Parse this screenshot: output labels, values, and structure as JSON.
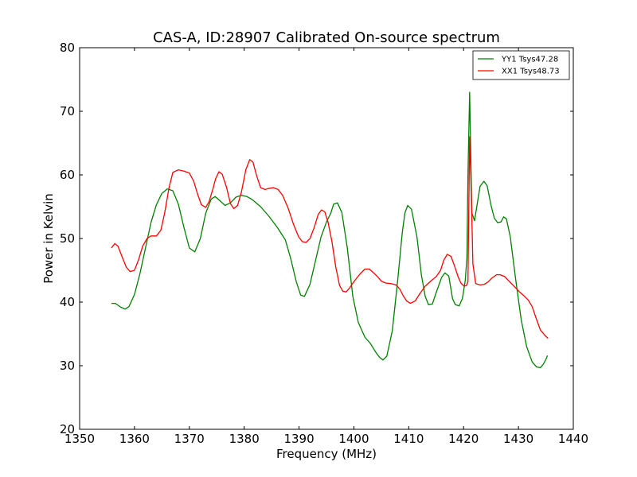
{
  "chart_data": {
    "type": "line",
    "title": "CAS-A, ID:28907 Calibrated On-source spectrum",
    "xlabel": "Frequency (MHz)",
    "ylabel": "Power in Kelvin",
    "xlim": [
      1350,
      1440
    ],
    "ylim": [
      20,
      80
    ],
    "xticks": [
      1350,
      1360,
      1370,
      1380,
      1390,
      1400,
      1410,
      1420,
      1430,
      1440
    ],
    "yticks": [
      20,
      30,
      40,
      50,
      60,
      70,
      80
    ],
    "grid": false,
    "legend_position": "top-right",
    "series": [
      {
        "name": "YY1 Tsys47.28",
        "color": "#008000",
        "x": [
          1355.8,
          1356.5,
          1357.5,
          1358.3,
          1359.0,
          1360.0,
          1361.0,
          1362.0,
          1363.0,
          1364.0,
          1365.0,
          1366.0,
          1367.0,
          1368.0,
          1369.0,
          1370.0,
          1371.0,
          1372.0,
          1373.0,
          1374.0,
          1374.7,
          1375.5,
          1376.5,
          1377.5,
          1378.5,
          1379.5,
          1380.5,
          1381.5,
          1383.0,
          1384.5,
          1386.0,
          1387.5,
          1388.5,
          1389.5,
          1390.3,
          1391.0,
          1392.0,
          1393.0,
          1394.0,
          1395.0,
          1395.8,
          1396.3,
          1397.0,
          1397.8,
          1398.8,
          1399.8,
          1400.8,
          1402.0,
          1403.0,
          1404.0,
          1404.7,
          1405.3,
          1406.0,
          1407.0,
          1408.0,
          1408.8,
          1409.3,
          1409.8,
          1410.5,
          1411.5,
          1412.3,
          1413.0,
          1413.6,
          1414.3,
          1415.0,
          1416.0,
          1416.6,
          1417.3,
          1418.0,
          1418.5,
          1419.2,
          1419.8,
          1420.3,
          1420.6,
          1420.8,
          1421.1,
          1421.5,
          1422.0,
          1422.5,
          1423.0,
          1423.7,
          1424.3,
          1425.0,
          1425.6,
          1426.2,
          1426.8,
          1427.3,
          1427.8,
          1428.5,
          1429.5,
          1430.5,
          1431.5,
          1432.5,
          1433.3,
          1434.0,
          1434.5,
          1435.0,
          1435.3
        ],
        "y": [
          39.8,
          39.8,
          39.2,
          38.9,
          39.3,
          41.2,
          44.5,
          48.5,
          52.5,
          55.3,
          57.1,
          57.8,
          57.5,
          55.4,
          51.8,
          48.5,
          47.9,
          50.0,
          54.0,
          56.2,
          56.6,
          56.0,
          55.2,
          55.6,
          56.5,
          56.8,
          56.6,
          56.1,
          55.0,
          53.5,
          51.8,
          49.8,
          46.8,
          43.2,
          41.1,
          40.9,
          42.8,
          46.5,
          50.2,
          52.6,
          54.0,
          55.4,
          55.6,
          54.1,
          48.5,
          40.9,
          36.8,
          34.5,
          33.5,
          32.1,
          31.3,
          30.9,
          31.5,
          35.5,
          43.6,
          50.8,
          54.0,
          55.2,
          54.6,
          50.2,
          44.3,
          40.9,
          39.6,
          39.7,
          41.5,
          43.9,
          44.6,
          44.1,
          40.5,
          39.6,
          39.4,
          40.6,
          43.4,
          47.0,
          60.0,
          73.0,
          54.0,
          52.8,
          55.5,
          58.2,
          59.0,
          58.3,
          55.2,
          53.2,
          52.5,
          52.6,
          53.4,
          53.1,
          50.3,
          43.5,
          37.2,
          33.0,
          30.6,
          29.8,
          29.7,
          30.2,
          31.0,
          31.6
        ]
      },
      {
        "name": "XX1 Tsys48.73",
        "color": "#ff0000",
        "x": [
          1355.8,
          1356.4,
          1357.0,
          1357.8,
          1358.5,
          1359.2,
          1360.0,
          1360.8,
          1361.5,
          1362.3,
          1363.0,
          1364.0,
          1364.8,
          1365.5,
          1366.3,
          1367.0,
          1368.0,
          1369.0,
          1370.0,
          1370.8,
          1371.5,
          1372.2,
          1373.0,
          1373.6,
          1374.3,
          1374.8,
          1375.4,
          1376.0,
          1376.8,
          1377.5,
          1378.1,
          1378.8,
          1379.5,
          1380.3,
          1381.0,
          1381.6,
          1382.3,
          1383.0,
          1383.8,
          1384.6,
          1385.3,
          1386.2,
          1387.0,
          1388.0,
          1389.0,
          1389.9,
          1390.6,
          1391.3,
          1392.0,
          1392.8,
          1393.5,
          1394.1,
          1394.7,
          1395.3,
          1396.0,
          1396.7,
          1397.4,
          1398.0,
          1398.6,
          1399.2,
          1400.0,
          1401.0,
          1402.0,
          1402.8,
          1403.6,
          1404.3,
          1405.0,
          1405.8,
          1406.8,
          1407.7,
          1408.4,
          1409.0,
          1409.6,
          1410.3,
          1411.2,
          1412.0,
          1413.0,
          1414.0,
          1415.0,
          1415.8,
          1416.4,
          1417.0,
          1417.7,
          1418.3,
          1419.0,
          1419.5,
          1420.1,
          1420.5,
          1420.8,
          1421.1,
          1421.4,
          1421.7,
          1422.2,
          1423.0,
          1423.8,
          1424.5,
          1425.2,
          1426.0,
          1426.7,
          1427.5,
          1428.4,
          1429.3,
          1430.2,
          1431.0,
          1431.8,
          1432.5,
          1433.2,
          1434.0,
          1434.8,
          1435.4
        ],
        "y": [
          48.5,
          49.2,
          48.8,
          47.0,
          45.5,
          44.8,
          45.0,
          46.8,
          48.8,
          50.0,
          50.4,
          50.4,
          51.3,
          54.0,
          58.0,
          60.4,
          60.8,
          60.6,
          60.3,
          59.0,
          57.0,
          55.3,
          54.9,
          55.8,
          57.8,
          59.4,
          60.5,
          60.1,
          58.0,
          55.5,
          54.7,
          55.2,
          57.3,
          60.8,
          62.4,
          62.0,
          59.8,
          58.0,
          57.7,
          57.9,
          58.0,
          57.7,
          56.8,
          54.8,
          52.2,
          50.3,
          49.5,
          49.4,
          50.0,
          51.8,
          53.8,
          54.5,
          54.2,
          52.5,
          49.5,
          45.5,
          42.6,
          41.7,
          41.6,
          42.2,
          43.2,
          44.3,
          45.2,
          45.2,
          44.6,
          44.0,
          43.3,
          43.0,
          42.9,
          42.7,
          42.0,
          41.0,
          40.2,
          39.8,
          40.2,
          41.3,
          42.5,
          43.3,
          44.0,
          45.0,
          46.6,
          47.5,
          47.2,
          45.8,
          44.0,
          43.0,
          42.5,
          42.6,
          43.2,
          66.0,
          57.0,
          46.0,
          42.9,
          42.7,
          42.8,
          43.2,
          43.8,
          44.3,
          44.3,
          44.0,
          43.2,
          42.4,
          41.6,
          41.0,
          40.3,
          39.3,
          37.5,
          35.6,
          34.8,
          34.3
        ]
      }
    ]
  }
}
